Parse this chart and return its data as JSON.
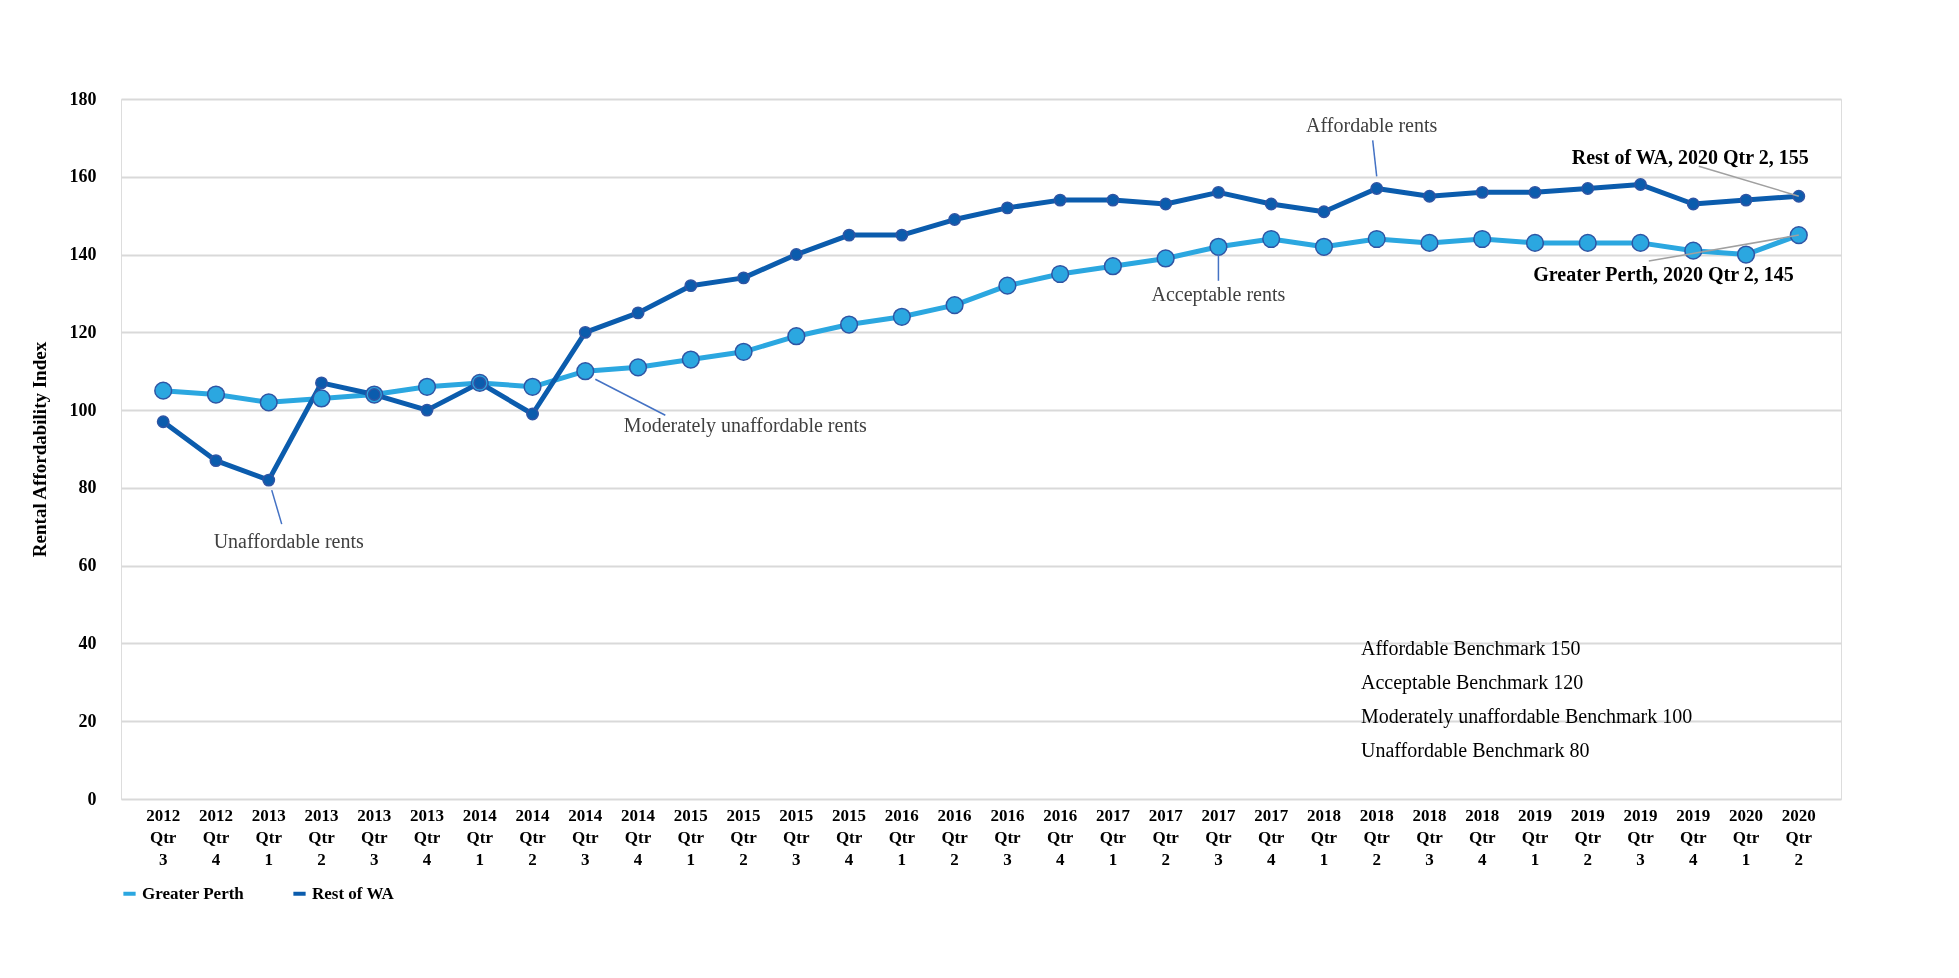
{
  "chart_data": {
    "type": "line",
    "ylabel": "Rental Affordability Index",
    "categories": [
      "2012 Qtr 3",
      "2012 Qtr 4",
      "2013 Qtr 1",
      "2013 Qtr 2",
      "2013 Qtr 3",
      "2013 Qtr 4",
      "2014 Qtr 1",
      "2014 Qtr 2",
      "2014 Qtr 3",
      "2014 Qtr 4",
      "2015 Qtr 1",
      "2015 Qtr 2",
      "2015 Qtr 3",
      "2015 Qtr 4",
      "2016 Qtr 1",
      "2016 Qtr 2",
      "2016 Qtr 3",
      "2016 Qtr 4",
      "2017 Qtr 1",
      "2017 Qtr 2",
      "2017 Qtr 3",
      "2017 Qtr 4",
      "2018 Qtr 1",
      "2018 Qtr 2",
      "2018 Qtr 3",
      "2018 Qtr 4",
      "2019 Qtr 1",
      "2019 Qtr 2",
      "2019 Qtr 3",
      "2019 Qtr 4",
      "2020 Qtr 1",
      "2020 Qtr 2"
    ],
    "series": [
      {
        "name": "Greater Perth",
        "color": "#2ba7e0",
        "values": [
          105,
          104,
          102,
          103,
          104,
          106,
          107,
          106,
          110,
          111,
          113,
          115,
          119,
          122,
          124,
          127,
          132,
          135,
          137,
          139,
          142,
          144,
          142,
          144,
          143,
          144,
          143,
          143,
          143,
          141,
          140,
          145
        ]
      },
      {
        "name": "Rest of  WA",
        "color": "#0b5cad",
        "values": [
          97,
          87,
          82,
          107,
          104,
          100,
          107,
          99,
          120,
          125,
          132,
          134,
          140,
          145,
          145,
          149,
          152,
          154,
          154,
          153,
          156,
          153,
          151,
          157,
          155,
          156,
          156,
          157,
          158,
          153,
          154,
          155
        ]
      }
    ],
    "ylim": [
      0,
      180
    ],
    "yticks": [
      0,
      20,
      40,
      60,
      80,
      100,
      120,
      140,
      160,
      180
    ],
    "grid": "y",
    "legend": "bottom",
    "marker": "circle",
    "line_style": "solid",
    "annotations": [
      {
        "text": "Unaffordable rents",
        "x": "2013 Qtr 1",
        "y": 82
      },
      {
        "text": "Moderately unaffordable rents",
        "x": "2014 Qtr 3",
        "y": 110
      },
      {
        "text": "Acceptable rents",
        "x": "2017 Qtr 3",
        "y": 142
      },
      {
        "text": "Affordable rents",
        "x": "2018 Qtr 2",
        "y": 157
      },
      {
        "text": "Rest of  WA, 2020 Qtr 2, 155",
        "x": "2020 Qtr 2",
        "y": 155
      },
      {
        "text": "Greater Perth, 2020 Qtr 2, 145",
        "x": "2020 Qtr 2",
        "y": 145
      },
      "Affordable Benchmark 150",
      "Acceptable Benchmark 120",
      "Moderately unaffordable Benchmark 100",
      "Unaffordable Benchmark 80"
    ]
  }
}
